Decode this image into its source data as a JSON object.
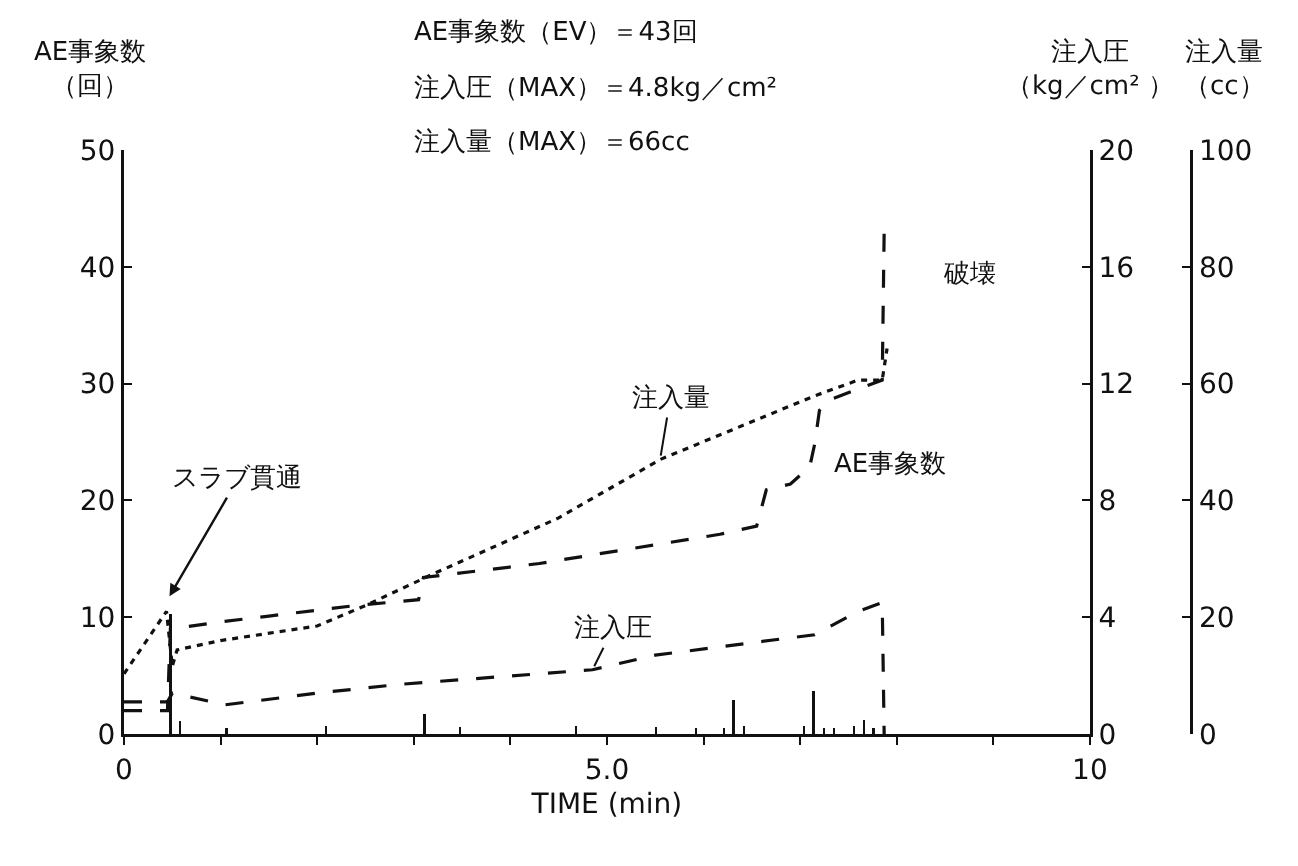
{
  "chart_data": {
    "type": "line",
    "xlabel": "TIME (min)",
    "ylabel": "AE事象数（回）",
    "y2label": "注入圧（kg／cm² ）",
    "y3label": "注入量（cc）",
    "annotations": [
      "AE事象数（EV）＝43回",
      "注入圧（MAX）＝4.8kg／cm²",
      "注入量（MAX）＝66cc",
      {
        "text": "スラブ貫通",
        "x": 0.45,
        "y": 11.5
      },
      {
        "text": "破壊",
        "x": 7.87,
        "y": 43
      }
    ],
    "xlim": [
      0,
      10
    ],
    "xticks": [
      0,
      {
        "value": 1,
        "label": null
      },
      {
        "value": 2,
        "label": null
      },
      {
        "value": 3,
        "label": null
      },
      {
        "value": 4,
        "label": null
      },
      {
        "value": 5,
        "label": "5.0"
      },
      {
        "value": 6,
        "label": null
      },
      {
        "value": 7,
        "label": null
      },
      {
        "value": 8,
        "label": null
      },
      {
        "value": 9,
        "label": null
      },
      10
    ],
    "ylim": [
      0,
      50
    ],
    "yticks": [
      0,
      10,
      20,
      30,
      40,
      50
    ],
    "y2lim": [
      0,
      20
    ],
    "y2ticks": [
      0,
      4,
      8,
      12,
      16,
      20
    ],
    "y3lim": [
      0,
      100
    ],
    "y3ticks": [
      0,
      20,
      40,
      60,
      80,
      100
    ],
    "grid": false,
    "legend": false,
    "marker": "none",
    "series": [
      {
        "name": "AE事象数",
        "line_style": "dashed",
        "color": "#111111",
        "x": [
          0,
          0.45,
          0.48,
          1.0,
          1.5,
          2.4,
          3.05,
          3.1,
          4.3,
          6.17,
          6.55,
          6.65,
          6.9,
          7.1,
          7.15,
          7.2,
          7.3,
          7.85,
          7.87
        ],
        "values": [
          2,
          2,
          9,
          9.6,
          10.1,
          11,
          11.5,
          13.4,
          14.6,
          17.1,
          17.8,
          20.9,
          21.4,
          22.9,
          24.8,
          27.7,
          28.6,
          30.3,
          43
        ]
      },
      {
        "name": "注入圧",
        "axis": "y2",
        "line_style": "dashed",
        "color": "#111111",
        "x": [
          0,
          0.45,
          0.5,
          1.05,
          2.0,
          2.85,
          4.85,
          5.5,
          7.15,
          7.6,
          7.85,
          7.87
        ],
        "values": [
          1.1,
          1.1,
          1.4,
          1.0,
          1.4,
          1.7,
          2.2,
          2.7,
          3.4,
          4.2,
          4.5,
          0
        ]
      },
      {
        "name": "注入量",
        "axis": "y3",
        "line_style": "dotted",
        "color": "#111111",
        "x": [
          0,
          0.44,
          0.5,
          0.55,
          1.0,
          2.0,
          2.5,
          3.2,
          4.5,
          5.55,
          7.15,
          7.6,
          7.85,
          7.9
        ],
        "values": [
          10.3,
          21,
          11.6,
          14.4,
          16,
          18.5,
          22,
          27.4,
          37,
          47,
          57.9,
          60.6,
          60.6,
          66
        ]
      },
      {
        "type": "bar",
        "color": "#111111",
        "x": [
          0.48,
          0.58,
          1.06,
          2.09,
          3.11,
          3.48,
          4.68,
          5.51,
          5.92,
          6.21,
          6.31,
          6.42,
          7.04,
          7.14,
          7.25,
          7.35,
          7.56,
          7.66,
          7.76
        ],
        "values": [
          10.3,
          1.1,
          0.5,
          0.7,
          1.7,
          0.6,
          0.7,
          0.6,
          0.5,
          0.5,
          2.9,
          0.7,
          0.7,
          3.7,
          0.5,
          0.5,
          0.7,
          1.2,
          0.5
        ]
      }
    ]
  }
}
